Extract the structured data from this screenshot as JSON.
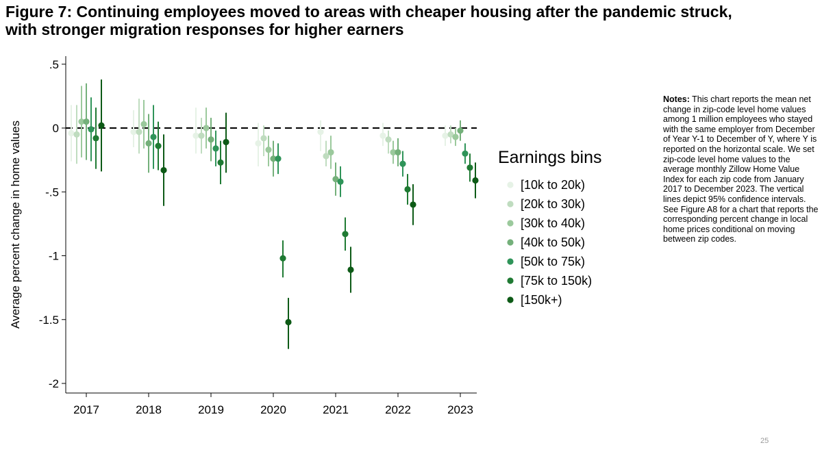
{
  "title": {
    "line1": "Figure 7: Continuing employees moved to areas with cheaper housing after the pandemic struck,",
    "line2": "with stronger migration responses for higher earners"
  },
  "notes": {
    "heading": "Notes:",
    "body": "This chart reports the mean net change in zip-code level home values among 1 million employees who stayed with the same employer from December of Year Y-1 to December of Y, where Y is reported on the horizontal scale. We set zip-code level home values to the  average monthly Zillow Home Value Index for each zip code from January 2017 to December 2023. The vertical lines depict 95% confidence intervals.",
    "see_also": "See Figure A8 for a chart that reports the corresponding percent change in local home prices conditional on moving between zip codes."
  },
  "page_number": "25",
  "chart_data": {
    "type": "scatter",
    "title": "",
    "xlabel": "",
    "ylabel": "Average percent change in home values",
    "ylim": [
      -2.05,
      0.52
    ],
    "yticks": [
      {
        "value": 0.5,
        "label": ".5"
      },
      {
        "value": 0,
        "label": "0"
      },
      {
        "value": -0.5,
        "label": "-.5"
      },
      {
        "value": -1,
        "label": "-1"
      },
      {
        "value": -1.5,
        "label": "-1.5"
      },
      {
        "value": -2,
        "label": "-2"
      }
    ],
    "categories": [
      "2017",
      "2018",
      "2019",
      "2020",
      "2021",
      "2022",
      "2023"
    ],
    "reference_line": {
      "value": 0,
      "style": "dashed"
    },
    "legend": {
      "title": "Earnings bins",
      "placement": "right"
    },
    "series": [
      {
        "name": "[10k to 20k)",
        "color": "#e6f2e6",
        "values": [
          -0.04,
          -0.03,
          -0.06,
          -0.12,
          -0.03,
          -0.06,
          -0.06
        ],
        "ci_low": [
          -0.26,
          -0.15,
          -0.2,
          -0.3,
          -0.18,
          -0.14,
          -0.14
        ],
        "ci_high": [
          0.18,
          0.14,
          0.16,
          0.04,
          0.06,
          0.04,
          0.02
        ]
      },
      {
        "name": "[20k to 30k)",
        "color": "#bfdcbf",
        "values": [
          -0.05,
          -0.03,
          -0.06,
          -0.08,
          -0.22,
          -0.09,
          -0.05
        ],
        "ci_low": [
          -0.28,
          -0.2,
          -0.2,
          -0.22,
          -0.3,
          -0.2,
          -0.12
        ],
        "ci_high": [
          0.18,
          0.23,
          0.08,
          0.02,
          -0.1,
          -0.02,
          0.02
        ]
      },
      {
        "name": "[30k to 40k)",
        "color": "#9bc99c",
        "values": [
          0.05,
          0.03,
          0.0,
          -0.17,
          -0.19,
          -0.19,
          -0.07
        ],
        "ci_low": [
          -0.23,
          -0.16,
          -0.16,
          -0.3,
          -0.32,
          -0.28,
          -0.14
        ],
        "ci_high": [
          0.33,
          0.22,
          0.16,
          -0.06,
          -0.06,
          -0.1,
          0.0
        ]
      },
      {
        "name": "[40k to 50k)",
        "color": "#74b07a",
        "values": [
          0.05,
          -0.12,
          -0.09,
          -0.24,
          -0.4,
          -0.19,
          -0.02
        ],
        "ci_low": [
          -0.25,
          -0.35,
          -0.26,
          -0.38,
          -0.53,
          -0.3,
          -0.1
        ],
        "ci_high": [
          0.35,
          0.11,
          0.08,
          -0.1,
          -0.27,
          -0.08,
          0.06
        ]
      },
      {
        "name": "[50k to 75k)",
        "color": "#2f9459",
        "values": [
          -0.01,
          -0.07,
          -0.16,
          -0.24,
          -0.42,
          -0.28,
          -0.2
        ],
        "ci_low": [
          -0.26,
          -0.32,
          -0.3,
          -0.36,
          -0.54,
          -0.38,
          -0.28
        ],
        "ci_high": [
          0.24,
          0.18,
          -0.02,
          -0.12,
          -0.3,
          -0.18,
          -0.12
        ]
      },
      {
        "name": "[75k to 150k)",
        "color": "#1f7a33",
        "values": [
          -0.08,
          -0.14,
          -0.27,
          -1.02,
          -0.83,
          -0.48,
          -0.31
        ],
        "ci_low": [
          -0.32,
          -0.33,
          -0.44,
          -1.17,
          -0.96,
          -0.6,
          -0.42
        ],
        "ci_high": [
          0.16,
          0.05,
          -0.1,
          -0.88,
          -0.7,
          -0.36,
          -0.2
        ]
      },
      {
        "name": "[150k+)",
        "color": "#0d5a16",
        "values": [
          0.02,
          -0.33,
          -0.11,
          -1.52,
          -1.11,
          -0.6,
          -0.41
        ],
        "ci_low": [
          -0.34,
          -0.61,
          -0.35,
          -1.73,
          -1.29,
          -0.76,
          -0.55
        ],
        "ci_high": [
          0.38,
          -0.05,
          0.12,
          -1.33,
          -0.93,
          -0.44,
          -0.27
        ]
      }
    ]
  }
}
